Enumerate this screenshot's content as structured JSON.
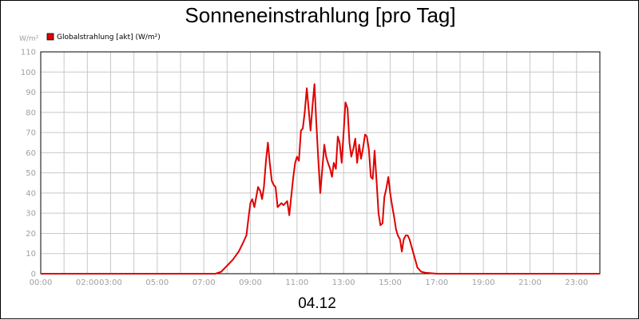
{
  "chart_data": {
    "type": "line",
    "title": "Sonneneinstrahlung [pro Tag]",
    "footer": "04.12",
    "ylabel": "W/m²",
    "ylim": [
      0,
      110
    ],
    "yticks": [
      0,
      10,
      20,
      30,
      40,
      50,
      60,
      70,
      80,
      90,
      100,
      110
    ],
    "xlim": [
      0,
      24
    ],
    "xticks": [
      {
        "x": 0,
        "label": "00:00"
      },
      {
        "x": 2,
        "label": "02:00"
      },
      {
        "x": 3,
        "label": "03:00"
      },
      {
        "x": 5,
        "label": "05:00"
      },
      {
        "x": 7,
        "label": "07:00"
      },
      {
        "x": 9,
        "label": "09:00"
      },
      {
        "x": 11,
        "label": "11:00"
      },
      {
        "x": 13,
        "label": "13:00"
      },
      {
        "x": 15,
        "label": "15:00"
      },
      {
        "x": 17,
        "label": "17:00"
      },
      {
        "x": 19,
        "label": "19:00"
      },
      {
        "x": 21,
        "label": "21:00"
      },
      {
        "x": 23,
        "label": "23:00"
      }
    ],
    "grid": true,
    "legend_position": "top-left",
    "colors": {
      "series": "#e00000",
      "grid": "#c8c8c8",
      "tick_text": "#a0a0a0"
    },
    "series": [
      {
        "name": "Globalstrahlung [akt] (W/m²)",
        "x": [
          0,
          7.0,
          7.5,
          7.75,
          8.0,
          8.25,
          8.5,
          8.67,
          8.83,
          8.92,
          9.0,
          9.08,
          9.17,
          9.33,
          9.42,
          9.5,
          9.58,
          9.67,
          9.75,
          9.83,
          9.92,
          10.0,
          10.08,
          10.17,
          10.33,
          10.42,
          10.5,
          10.58,
          10.67,
          10.83,
          10.92,
          11.0,
          11.08,
          11.17,
          11.25,
          11.33,
          11.42,
          11.58,
          11.67,
          11.75,
          11.83,
          11.92,
          12.0,
          12.17,
          12.25,
          12.33,
          12.42,
          12.5,
          12.58,
          12.67,
          12.75,
          12.83,
          12.92,
          13.0,
          13.08,
          13.17,
          13.25,
          13.33,
          13.42,
          13.5,
          13.58,
          13.67,
          13.75,
          13.83,
          13.92,
          14.0,
          14.08,
          14.17,
          14.25,
          14.33,
          14.42,
          14.5,
          14.58,
          14.67,
          14.75,
          14.83,
          14.92,
          15.0,
          15.08,
          15.17,
          15.25,
          15.33,
          15.42,
          15.5,
          15.58,
          15.67,
          15.75,
          15.83,
          16.0,
          16.17,
          16.33,
          16.5,
          17.0,
          24.0
        ],
        "y": [
          0,
          0,
          0,
          1,
          4,
          7,
          11,
          15,
          19,
          28,
          35,
          37,
          33,
          43,
          41,
          37,
          43,
          56,
          65,
          55,
          46,
          44,
          43,
          33,
          35,
          34,
          35,
          36,
          29,
          47,
          55,
          58,
          56,
          71,
          72,
          80,
          92,
          71,
          84,
          94,
          75,
          55,
          40,
          64,
          58,
          55,
          52,
          48,
          55,
          52,
          68,
          65,
          55,
          70,
          85,
          82,
          65,
          58,
          62,
          67,
          55,
          64,
          57,
          62,
          69,
          68,
          62,
          48,
          47,
          61,
          45,
          30,
          24,
          25,
          38,
          42,
          48,
          40,
          34,
          28,
          22,
          19,
          17,
          11,
          17,
          19,
          19,
          17,
          10,
          3,
          1,
          0.5,
          0,
          0
        ]
      }
    ]
  }
}
